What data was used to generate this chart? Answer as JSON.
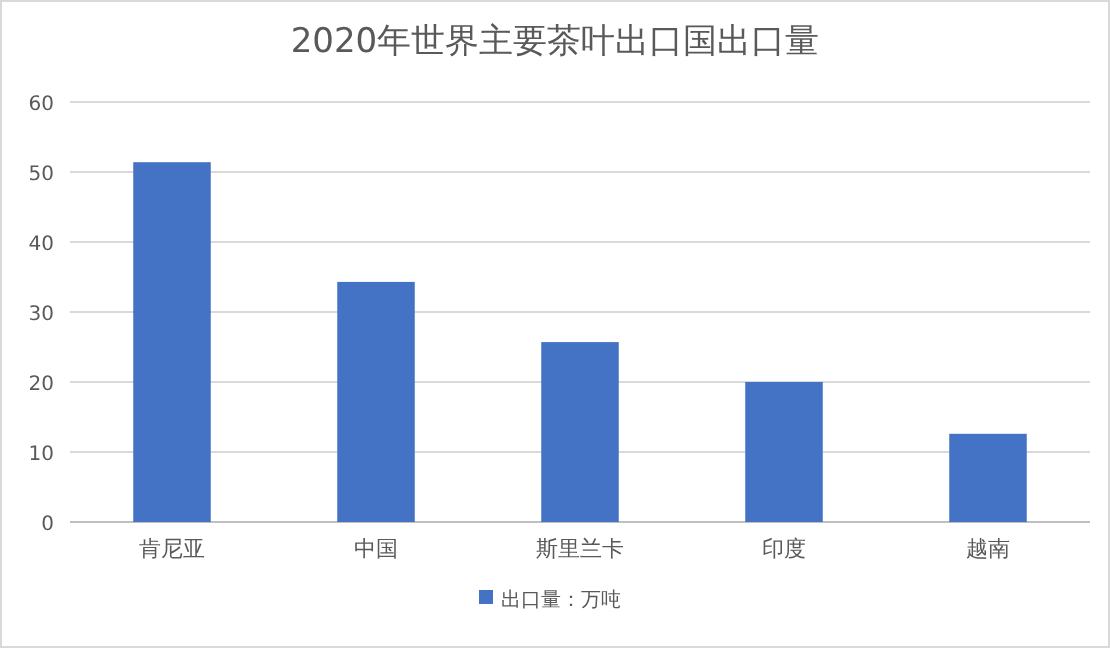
{
  "chart_data": {
    "type": "bar",
    "title": "2020年世界主要茶叶出口国出口量",
    "categories": [
      "肯尼亚",
      "中国",
      "斯里兰卡",
      "印度",
      "越南"
    ],
    "series": [
      {
        "name": "出口量：万吨",
        "color": "#4472c4",
        "values": [
          51.4,
          34.3,
          25.7,
          20.0,
          12.6
        ]
      }
    ],
    "ylim": [
      0,
      60
    ],
    "yticks": [
      0,
      10,
      20,
      30,
      40,
      50,
      60
    ],
    "grid": "y",
    "legend": "bottom"
  }
}
